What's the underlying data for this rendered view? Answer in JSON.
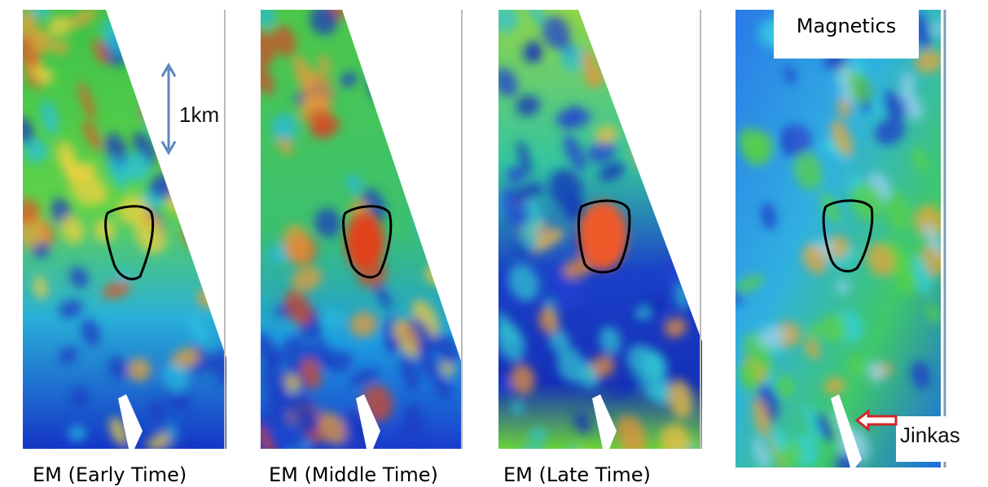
{
  "panels": [
    {
      "caption": "EM (Early Time)"
    },
    {
      "caption": "EM (Middle Time)"
    },
    {
      "caption": "EM (Late Time)"
    },
    {
      "caption": "Magnetics"
    }
  ],
  "scale_label": "1km",
  "magnetics_label": "Magnetics",
  "pointer_label": "Jinkas"
}
